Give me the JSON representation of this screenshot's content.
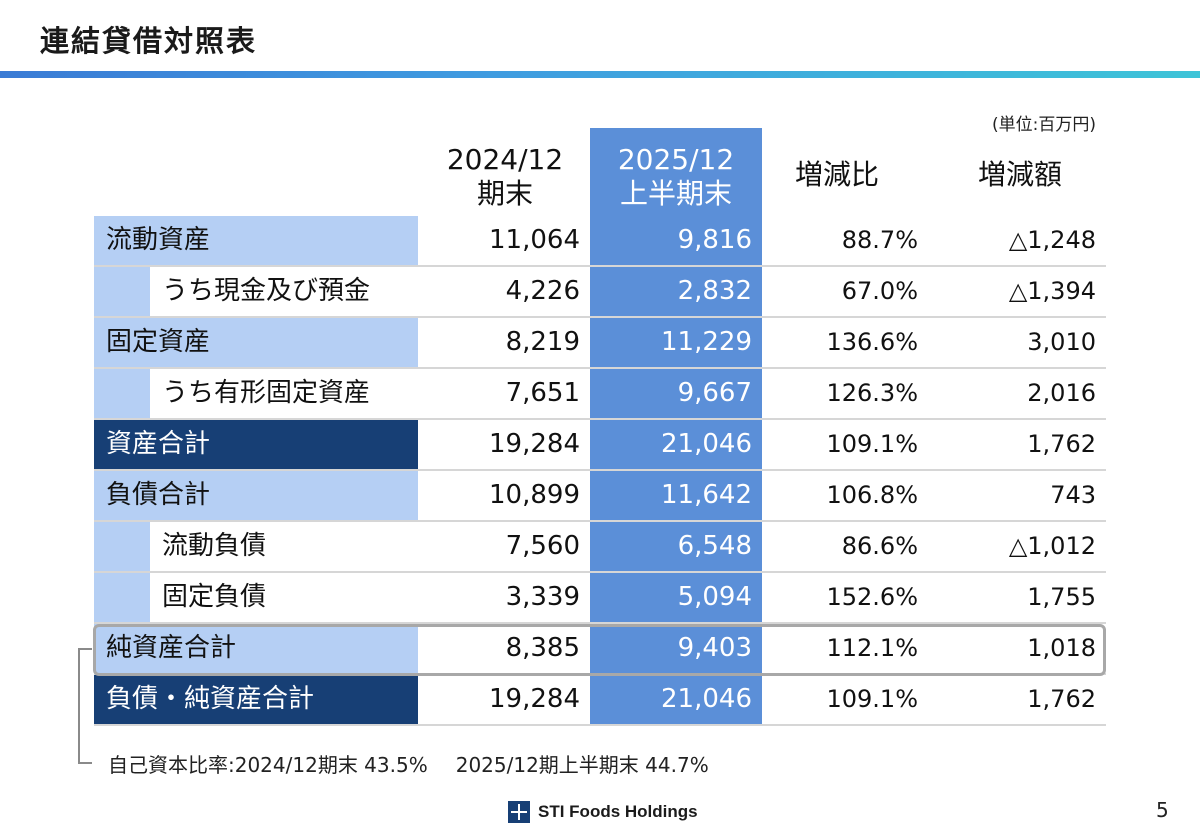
{
  "title": "連結貸借対照表",
  "unit": "(単位:百万円)",
  "headers": {
    "col2024": [
      "2024/12",
      "期末"
    ],
    "col2025": [
      "2025/12",
      "上半期末"
    ],
    "ratio": "増減比",
    "diff": "増減額"
  },
  "rows": [
    {
      "label": "流動資産",
      "v2024": "11,064",
      "v2025": "9,816",
      "ratio": "88.7%",
      "diff": "△1,248"
    },
    {
      "label": "うち現金及び預金",
      "v2024": "4,226",
      "v2025": "2,832",
      "ratio": "67.0%",
      "diff": "△1,394"
    },
    {
      "label": "固定資産",
      "v2024": "8,219",
      "v2025": "11,229",
      "ratio": "136.6%",
      "diff": "3,010"
    },
    {
      "label": "うち有形固定資産",
      "v2024": "7,651",
      "v2025": "9,667",
      "ratio": "126.3%",
      "diff": "2,016"
    },
    {
      "label": "資産合計",
      "v2024": "19,284",
      "v2025": "21,046",
      "ratio": "109.1%",
      "diff": "1,762"
    },
    {
      "label": "負債合計",
      "v2024": "10,899",
      "v2025": "11,642",
      "ratio": "106.8%",
      "diff": "743"
    },
    {
      "label": "流動負債",
      "v2024": "7,560",
      "v2025": "6,548",
      "ratio": "86.6%",
      "diff": "△1,012"
    },
    {
      "label": "固定負債",
      "v2024": "3,339",
      "v2025": "5,094",
      "ratio": "152.6%",
      "diff": "1,755"
    },
    {
      "label": "純資産合計",
      "v2024": "8,385",
      "v2025": "9,403",
      "ratio": "112.1%",
      "diff": "1,018"
    },
    {
      "label": "負債・純資産合計",
      "v2024": "19,284",
      "v2025": "21,046",
      "ratio": "109.1%",
      "diff": "1,762"
    }
  ],
  "note": {
    "part1": "自己資本比率:2024/12期末 43.5%",
    "part2": "2025/12期上半期末 44.7%"
  },
  "footer": {
    "company": "STI Foods Holdings",
    "page_number": "5"
  },
  "colors": {
    "label_light": "#b5cff4",
    "label_dark": "#173f75",
    "highlight_col": "#5b8fd8"
  }
}
